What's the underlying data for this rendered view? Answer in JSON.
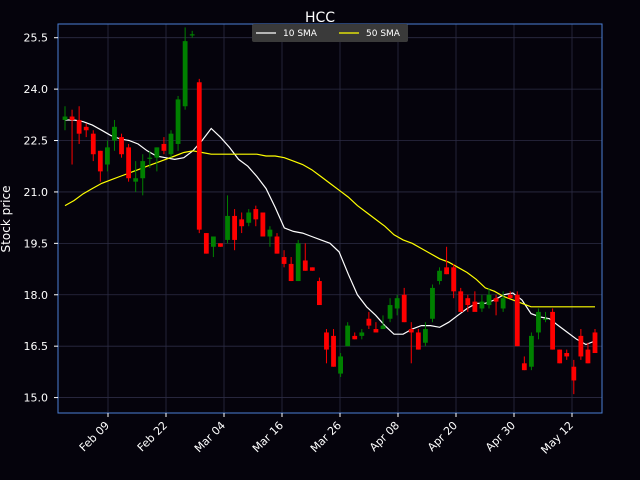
{
  "chart_data": {
    "type": "candlestick",
    "title": "HCC",
    "ylabel": "Stock price",
    "ylim": [
      14.55,
      25.9
    ],
    "yticks": [
      "15.0",
      "16.5",
      "18.0",
      "19.5",
      "21.0",
      "22.5",
      "24.0",
      "25.5"
    ],
    "xticks": [
      "Feb 09",
      "Feb 22",
      "Mar 04",
      "Mar 16",
      "Mar 26",
      "Apr 08",
      "Apr 20",
      "Apr 30",
      "May 12"
    ],
    "grid": true,
    "legend_position": "top-center",
    "colors": {
      "up": "#008000",
      "down": "#ff0000",
      "background": "#05030c",
      "frame": "#4a7fd6",
      "grid": "#2c2c44",
      "sma10": "#ffffff",
      "sma50": "#ffff00",
      "legend_bg": "#3a3a3a"
    },
    "series": [
      {
        "name": "10 SMA",
        "values": [
          23.1,
          23.1,
          23.05,
          22.95,
          22.8,
          22.65,
          22.55,
          22.5,
          22.4,
          22.2,
          22.05,
          22.0,
          21.95,
          22.0,
          22.2,
          22.5,
          22.85,
          22.6,
          22.3,
          21.95,
          21.75,
          21.45,
          21.1,
          20.55,
          19.95,
          19.85,
          19.8,
          19.7,
          19.6,
          19.5,
          19.25,
          18.6,
          18.0,
          17.65,
          17.4,
          17.1,
          16.85,
          16.85,
          17.0,
          17.1,
          17.1,
          17.05,
          17.2,
          17.4,
          17.6,
          17.75,
          17.75,
          17.85,
          18.0,
          18.05,
          17.85,
          17.45,
          17.35,
          17.3,
          17.1,
          16.9,
          16.7,
          16.55,
          16.65
        ]
      },
      {
        "name": "50 SMA",
        "values": [
          20.6,
          20.75,
          20.95,
          21.1,
          21.25,
          21.35,
          21.45,
          21.55,
          21.65,
          21.75,
          21.85,
          21.95,
          22.05,
          22.15,
          22.2,
          22.15,
          22.1,
          22.1,
          22.1,
          22.1,
          22.1,
          22.1,
          22.05,
          22.05,
          22.0,
          21.9,
          21.8,
          21.65,
          21.45,
          21.25,
          21.05,
          20.85,
          20.6,
          20.4,
          20.2,
          20.0,
          19.75,
          19.6,
          19.5,
          19.35,
          19.2,
          19.05,
          18.95,
          18.8,
          18.65,
          18.45,
          18.2,
          18.1,
          17.95,
          17.85,
          17.75,
          17.65,
          17.65,
          17.65,
          17.65,
          17.65,
          17.65,
          17.65,
          17.65
        ]
      }
    ],
    "candles": [
      [
        23.1,
        23.5,
        22.8,
        23.2
      ],
      [
        23.2,
        23.4,
        21.8,
        23.1
      ],
      [
        23.1,
        23.5,
        22.4,
        22.7
      ],
      [
        22.9,
        23.0,
        22.6,
        22.8
      ],
      [
        22.7,
        22.8,
        21.9,
        22.1
      ],
      [
        22.2,
        22.2,
        21.3,
        21.6
      ],
      [
        21.8,
        22.5,
        21.6,
        22.3
      ],
      [
        22.5,
        23.1,
        22.2,
        22.9
      ],
      [
        22.6,
        22.7,
        22.0,
        22.1
      ],
      [
        22.3,
        22.4,
        21.3,
        21.4
      ],
      [
        21.3,
        21.9,
        21.0,
        21.4
      ],
      [
        21.4,
        22.1,
        20.9,
        21.9
      ],
      [
        22.0,
        22.2,
        21.7,
        22.0
      ],
      [
        22.0,
        22.3,
        21.6,
        22.3
      ],
      [
        22.4,
        22.6,
        22.1,
        22.2
      ],
      [
        22.1,
        22.8,
        22.0,
        22.7
      ],
      [
        22.4,
        23.8,
        22.2,
        23.7
      ],
      [
        23.5,
        25.8,
        23.4,
        25.4
      ],
      [
        25.6,
        25.7,
        25.5,
        25.6
      ],
      [
        24.2,
        24.3,
        19.8,
        19.9
      ],
      [
        19.8,
        19.8,
        19.2,
        19.2
      ],
      [
        19.4,
        19.6,
        19.1,
        19.7
      ],
      [
        19.5,
        19.5,
        19.4,
        19.4
      ],
      [
        19.6,
        20.9,
        19.5,
        20.3
      ],
      [
        20.3,
        20.5,
        19.3,
        19.6
      ],
      [
        20.2,
        20.4,
        19.8,
        20.0
      ],
      [
        20.1,
        20.5,
        20.0,
        20.4
      ],
      [
        20.5,
        20.6,
        20.0,
        20.2
      ],
      [
        20.4,
        20.4,
        19.7,
        19.7
      ],
      [
        19.7,
        20.0,
        19.4,
        19.9
      ],
      [
        19.7,
        19.8,
        19.2,
        19.2
      ],
      [
        19.1,
        19.3,
        18.8,
        18.9
      ],
      [
        18.9,
        19.1,
        18.4,
        18.4
      ],
      [
        18.4,
        19.6,
        18.4,
        19.5
      ],
      [
        19.0,
        19.5,
        18.7,
        18.7
      ],
      [
        18.8,
        18.8,
        18.7,
        18.7
      ],
      [
        18.4,
        18.5,
        17.8,
        17.7
      ],
      [
        16.9,
        17.0,
        16.0,
        16.4
      ],
      [
        16.8,
        17.0,
        15.9,
        15.9
      ],
      [
        15.7,
        16.3,
        15.6,
        16.2
      ],
      [
        16.5,
        17.2,
        16.5,
        17.1
      ],
      [
        16.8,
        16.9,
        16.7,
        16.7
      ],
      [
        16.8,
        17.0,
        16.7,
        16.9
      ],
      [
        17.3,
        17.5,
        17.0,
        17.1
      ],
      [
        17.0,
        17.2,
        16.9,
        16.9
      ],
      [
        17.0,
        17.4,
        17.0,
        17.1
      ],
      [
        17.3,
        17.9,
        17.2,
        17.7
      ],
      [
        17.6,
        18.0,
        17.4,
        17.9
      ],
      [
        18.0,
        18.2,
        17.2,
        17.2
      ],
      [
        17.0,
        17.2,
        16.0,
        16.9
      ],
      [
        16.9,
        17.0,
        16.4,
        16.4
      ],
      [
        16.6,
        17.2,
        16.5,
        17.0
      ],
      [
        17.3,
        18.3,
        17.2,
        18.2
      ],
      [
        18.4,
        18.8,
        18.3,
        18.7
      ],
      [
        18.8,
        19.4,
        18.6,
        18.6
      ],
      [
        18.8,
        18.9,
        17.9,
        18.1
      ],
      [
        18.1,
        18.2,
        17.6,
        17.5
      ],
      [
        17.9,
        18.0,
        17.5,
        17.7
      ],
      [
        17.8,
        18.1,
        17.6,
        17.5
      ],
      [
        17.6,
        18.0,
        17.5,
        17.8
      ],
      [
        17.7,
        18.2,
        17.6,
        18.0
      ],
      [
        17.9,
        18.0,
        17.4,
        17.8
      ],
      [
        17.6,
        18.1,
        17.5,
        17.9
      ],
      [
        18.0,
        18.1,
        17.9,
        17.9
      ],
      [
        18.0,
        18.1,
        16.5,
        16.5
      ],
      [
        16.0,
        16.2,
        15.8,
        15.8
      ],
      [
        15.9,
        16.9,
        15.8,
        16.8
      ],
      [
        16.9,
        17.6,
        16.7,
        17.5
      ],
      [
        17.3,
        17.5,
        17.2,
        17.3
      ],
      [
        17.5,
        17.6,
        16.4,
        16.4
      ],
      [
        16.4,
        16.4,
        16.0,
        16.0
      ],
      [
        16.3,
        16.4,
        16.1,
        16.2
      ],
      [
        15.9,
        16.1,
        15.1,
        15.5
      ],
      [
        16.8,
        17.0,
        16.1,
        16.2
      ],
      [
        16.4,
        16.6,
        16.0,
        16.0
      ],
      [
        16.9,
        17.0,
        16.3,
        16.3
      ]
    ]
  }
}
